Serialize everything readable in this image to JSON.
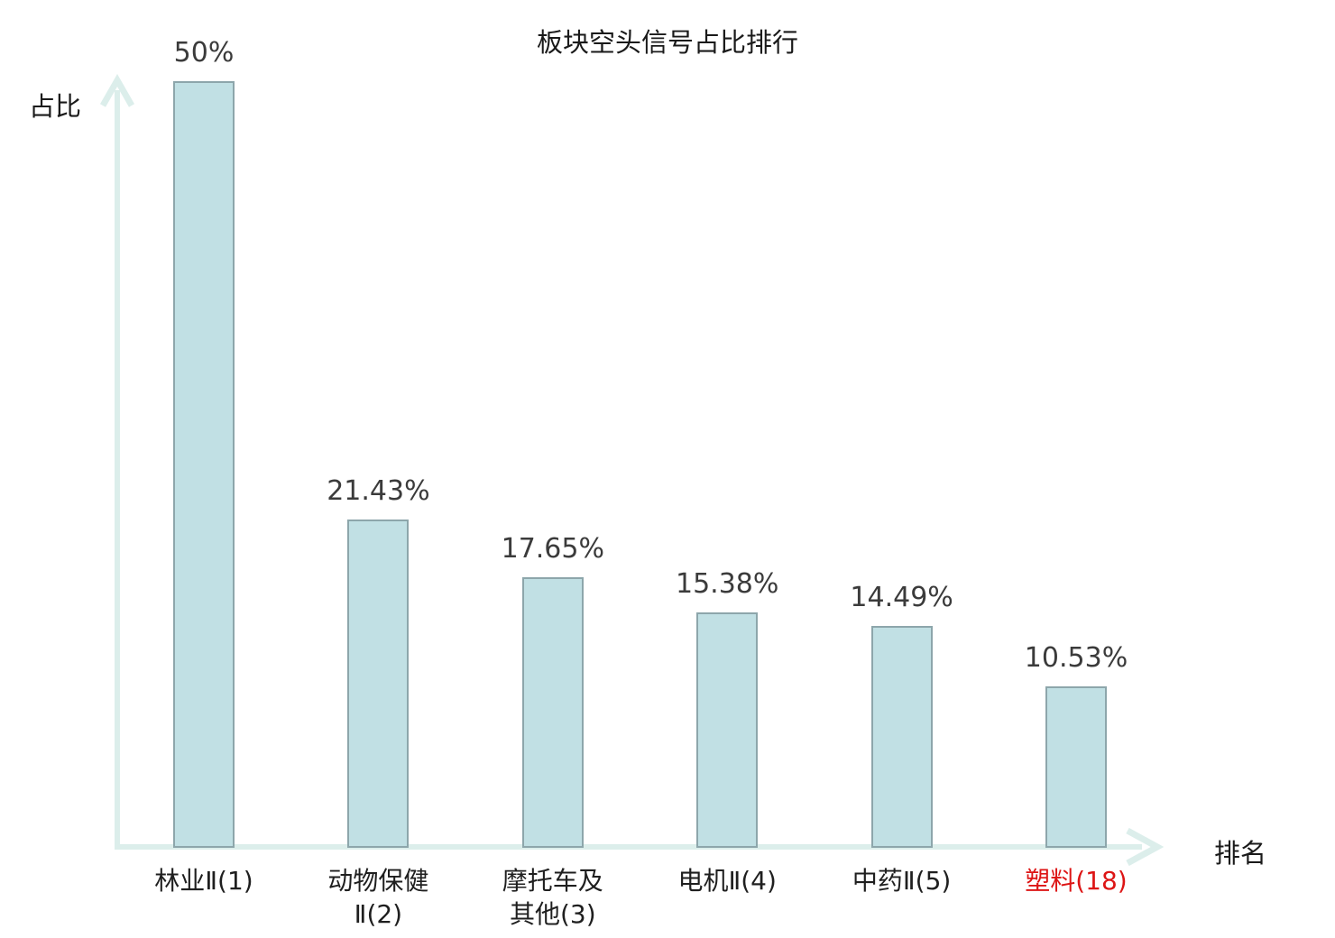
{
  "chart_data": {
    "type": "bar",
    "title": "板块空头信号占比排行",
    "xlabel": "排名",
    "ylabel": "占比",
    "categories": [
      "林业Ⅱ(1)",
      "动物保健Ⅱ(2)",
      "摩托车及其他(3)",
      "电机Ⅱ(4)",
      "中药Ⅱ(5)",
      "塑料(18)"
    ],
    "category_lines": [
      [
        "林业Ⅱ(1)"
      ],
      [
        "动物保健",
        "Ⅱ(2)"
      ],
      [
        "摩托车及",
        "其他(3)"
      ],
      [
        "电机Ⅱ(4)"
      ],
      [
        "中药Ⅱ(5)"
      ],
      [
        "塑料(18)"
      ]
    ],
    "values": [
      50,
      21.43,
      17.65,
      15.38,
      14.49,
      10.53
    ],
    "value_labels": [
      "50%",
      "21.43%",
      "17.65%",
      "15.38%",
      "14.49%",
      "10.53%"
    ],
    "highlighted_category_index": 5,
    "ylim": [
      0,
      50
    ],
    "grid": false,
    "legend": "none",
    "colors": {
      "bar_fill": "#c1e0e4",
      "bar_border": "#8da6ab",
      "axis": "#dceeeb",
      "value_label": "#3b3b3b",
      "category_label": "#1f1f1f",
      "highlight_label": "#dd1515",
      "title": "#1a1a1a"
    }
  }
}
